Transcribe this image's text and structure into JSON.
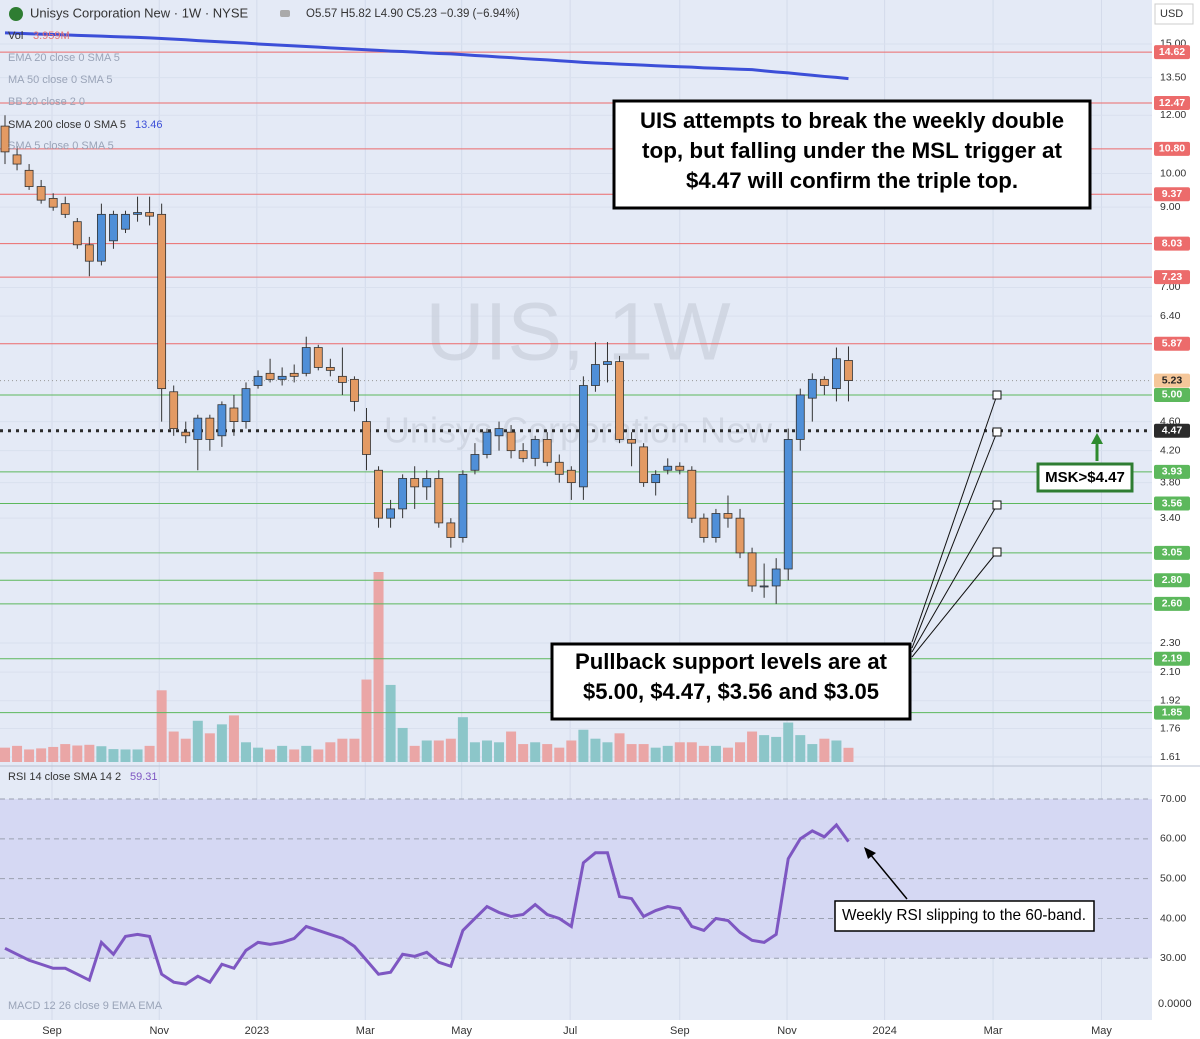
{
  "header": {
    "symbol": "Unisys Corporation New · 1W · NYSE",
    "ohlc": "O5.57 H5.82 L4.90 C5.23 −0.39 (−6.94%)",
    "currency": "USD"
  },
  "indicators": [
    {
      "name": "Vol",
      "value": "3.959M"
    },
    {
      "name": "EMA 20 close 0 SMA 5"
    },
    {
      "name": "MA 50 close 0 SMA 5"
    },
    {
      "name": "BB 20 close 2 0"
    },
    {
      "name": "SMA 200 close 0 SMA 5",
      "value": "13.46"
    },
    {
      "name": "SMA 5 close 0 SMA 5"
    }
  ],
  "watermark": {
    "title": "UIS, 1W",
    "subtitle": "Unisys Corporation New"
  },
  "annotations": {
    "top": [
      "UIS attempts to break the weekly double",
      "top, but falling under the MSL trigger at",
      "$4.47 will confirm the triple top."
    ],
    "support": [
      "Pullback support levels are at",
      "$5.00, $4.47, $3.56 and $3.05"
    ],
    "msk": "MSK>$4.47",
    "rsi": "Weekly RSI slipping to the 60-band."
  },
  "macd": {
    "title": "MACD 12 26 close 9 EMA EMA",
    "zero_label": "0.0000"
  },
  "chart_data": [
    {
      "type": "candlestick",
      "log": true,
      "ylim": [
        1.585,
        15.67
      ],
      "yticks": [
        {
          "value": 15,
          "label": "15.00"
        },
        {
          "value": 13.5,
          "label": "13.50"
        },
        {
          "value": 12,
          "label": "12.00"
        },
        {
          "value": 10,
          "label": "10.00"
        },
        {
          "value": 9,
          "label": "9.00"
        },
        {
          "value": 7,
          "label": "7.00"
        },
        {
          "value": 6.4,
          "label": "6.40"
        },
        {
          "value": 4.6,
          "label": "4.60"
        },
        {
          "value": 4.2,
          "label": "4.20"
        },
        {
          "value": 3.8,
          "label": "3.80"
        },
        {
          "value": 3.4,
          "label": "3.40"
        },
        {
          "value": 2.3,
          "label": "2.30"
        },
        {
          "value": 2.1,
          "label": "2.10"
        },
        {
          "value": 1.92,
          "label": "1.92"
        },
        {
          "value": 1.76,
          "label": "1.76"
        },
        {
          "value": 1.61,
          "label": "1.61"
        }
      ],
      "xlim": [
        -0.415,
        95.19
      ],
      "xticks": [
        {
          "value": 3.9,
          "label": "Sep"
        },
        {
          "value": 12.8,
          "label": "Nov"
        },
        {
          "value": 20.9,
          "label": "2023"
        },
        {
          "value": 29.9,
          "label": "Mar"
        },
        {
          "value": 37.9,
          "label": "May"
        },
        {
          "value": 46.9,
          "label": "Jul"
        },
        {
          "value": 56,
          "label": "Sep"
        },
        {
          "value": 64.9,
          "label": "Nov"
        },
        {
          "value": 73,
          "label": "2024"
        },
        {
          "value": 82,
          "label": "Mar"
        },
        {
          "value": 91,
          "label": "May"
        }
      ],
      "open": [
        11.6,
        10.6,
        10.1,
        9.6,
        9.25,
        9.1,
        8.6,
        8.0,
        7.6,
        8.1,
        8.4,
        8.8,
        8.85,
        8.8,
        5.05,
        4.45,
        4.35,
        4.65,
        4.4,
        4.8,
        4.6,
        5.15,
        5.35,
        5.25,
        5.35,
        5.35,
        5.8,
        5.45,
        5.3,
        5.25,
        4.6,
        3.95,
        3.4,
        3.5,
        3.85,
        3.75,
        3.85,
        3.35,
        3.2,
        3.95,
        4.15,
        4.4,
        4.45,
        4.2,
        4.1,
        4.35,
        4.05,
        3.95,
        3.75,
        5.15,
        5.5,
        5.55,
        4.35,
        4.25,
        3.8,
        3.95,
        4.0,
        3.95,
        3.4,
        3.2,
        3.45,
        3.4,
        3.05,
        2.75,
        2.75,
        2.9,
        4.35,
        4.95,
        5.25,
        5.1,
        5.57
      ],
      "high": [
        12.0,
        10.9,
        10.3,
        9.8,
        9.4,
        9.3,
        8.7,
        8.2,
        9.1,
        8.9,
        8.9,
        9.3,
        9.3,
        9.1,
        5.15,
        4.6,
        4.7,
        4.7,
        4.9,
        5.0,
        5.2,
        5.4,
        5.6,
        5.45,
        5.5,
        6.0,
        5.85,
        5.6,
        5.8,
        5.3,
        4.8,
        4.0,
        3.6,
        3.9,
        4.0,
        3.95,
        3.95,
        3.4,
        3.95,
        4.3,
        4.5,
        4.6,
        4.55,
        4.3,
        4.4,
        4.45,
        4.15,
        4.0,
        5.3,
        5.9,
        5.9,
        5.65,
        4.45,
        4.3,
        3.95,
        4.1,
        4.05,
        4.0,
        3.45,
        3.5,
        3.65,
        3.5,
        3.1,
        2.95,
        3.0,
        4.5,
        5.1,
        5.35,
        5.3,
        5.8,
        5.82
      ],
      "low": [
        10.3,
        10.1,
        9.5,
        9.1,
        8.9,
        8.7,
        7.9,
        7.25,
        7.5,
        7.9,
        8.3,
        8.6,
        8.5,
        4.6,
        4.4,
        4.3,
        3.95,
        4.2,
        4.25,
        4.4,
        4.5,
        5.1,
        5.2,
        5.15,
        5.2,
        5.3,
        5.4,
        5.3,
        5.0,
        4.75,
        3.95,
        3.3,
        3.3,
        3.4,
        3.5,
        3.6,
        3.3,
        3.1,
        3.15,
        3.9,
        4.1,
        4.2,
        4.1,
        4.05,
        4.0,
        4.0,
        3.8,
        3.6,
        3.6,
        5.05,
        5.2,
        4.3,
        4.0,
        3.75,
        3.65,
        3.9,
        3.9,
        3.35,
        3.15,
        3.15,
        3.3,
        3.0,
        2.7,
        2.65,
        2.6,
        2.8,
        4.2,
        4.6,
        5.0,
        4.9,
        4.9
      ],
      "close": [
        10.7,
        10.3,
        9.6,
        9.2,
        9.0,
        8.8,
        8.0,
        7.6,
        8.8,
        8.8,
        8.8,
        8.85,
        8.75,
        5.1,
        4.5,
        4.4,
        4.65,
        4.35,
        4.85,
        4.6,
        5.1,
        5.3,
        5.25,
        5.3,
        5.3,
        5.8,
        5.45,
        5.4,
        5.2,
        4.9,
        4.15,
        3.4,
        3.5,
        3.85,
        3.75,
        3.85,
        3.35,
        3.2,
        3.9,
        4.15,
        4.45,
        4.5,
        4.2,
        4.1,
        4.35,
        4.05,
        3.9,
        3.8,
        5.15,
        5.5,
        5.55,
        4.35,
        4.3,
        3.8,
        3.9,
        4.0,
        3.95,
        3.4,
        3.2,
        3.45,
        3.4,
        3.05,
        2.75,
        2.75,
        2.9,
        4.35,
        5.0,
        5.25,
        5.15,
        5.6,
        5.23
      ],
      "volume": [
        4,
        4.5,
        3.5,
        3.8,
        4.2,
        5,
        4.6,
        4.8,
        4.4,
        3.6,
        3.5,
        3.5,
        4.5,
        20,
        8.5,
        6.5,
        11.5,
        8,
        10.5,
        13,
        5.5,
        4,
        3.5,
        4.5,
        3.5,
        4.5,
        3.5,
        5.5,
        6.5,
        6.5,
        23,
        53,
        21.5,
        9.5,
        4.5,
        6,
        6,
        6.5,
        12.5,
        5.5,
        6,
        5.5,
        8.5,
        5,
        5.5,
        5,
        4,
        6,
        9,
        6.5,
        5.5,
        8,
        5,
        5,
        4,
        4.5,
        5.5,
        5.5,
        4.5,
        4.5,
        4,
        5.5,
        8.5,
        7.5,
        7,
        11,
        7.5,
        5,
        6.5,
        6,
        3.959
      ],
      "up_color": "#4f8fd8",
      "down_color": "#e39a63",
      "volume_up_color": "#8cc6c9",
      "volume_down_color": "#eaa6a6",
      "sma": {
        "color": "#3c4fd8",
        "values": [
          15.53,
          15.51,
          15.49,
          15.47,
          15.45,
          15.43,
          15.41,
          15.39,
          15.37,
          15.35,
          15.33,
          15.31,
          15.29,
          15.26,
          15.23,
          15.2,
          15.16,
          15.13,
          15.1,
          15.07,
          15.04,
          15.0,
          14.97,
          14.94,
          14.91,
          14.88,
          14.85,
          14.82,
          14.79,
          14.76,
          14.73,
          14.7,
          14.67,
          14.65,
          14.62,
          14.59,
          14.56,
          14.54,
          14.51,
          14.47,
          14.44,
          14.4,
          14.37,
          14.33,
          14.3,
          14.27,
          14.23,
          14.2,
          14.16,
          14.13,
          14.11,
          14.08,
          14.06,
          14.04,
          14.01,
          13.99,
          13.97,
          13.95,
          13.92,
          13.9,
          13.88,
          13.86,
          13.84,
          13.79,
          13.74,
          13.7,
          13.65,
          13.6,
          13.55,
          13.51,
          13.46
        ]
      },
      "levels": [
        {
          "value": 14.62,
          "color": "#ec6b6b"
        },
        {
          "value": 12.47,
          "color": "#ec6b6b"
        },
        {
          "value": 10.8,
          "label": "10.80",
          "color": "#ec6b6b"
        },
        {
          "value": 9.37,
          "color": "#ec6b6b"
        },
        {
          "value": 8.03,
          "color": "#ec6b6b"
        },
        {
          "value": 7.23,
          "color": "#ec6b6b"
        },
        {
          "value": 5.87,
          "color": "#ec6b6b"
        },
        {
          "value": 5.23,
          "color": "#f5c79a",
          "text_color": "#222222",
          "style": "dashed"
        },
        {
          "value": 5,
          "label": "5.00",
          "color": "#5cb85c"
        },
        {
          "value": 4.47,
          "color": "#2b2b2b",
          "style": "dotted"
        },
        {
          "value": 3.93,
          "color": "#5cb85c"
        },
        {
          "value": 3.56,
          "color": "#5cb85c"
        },
        {
          "value": 3.05,
          "color": "#5cb85c"
        },
        {
          "value": 2.8,
          "label": "2.80",
          "color": "#5cb85c"
        },
        {
          "value": 2.6,
          "label": "2.60",
          "color": "#5cb85c"
        },
        {
          "value": 2.19,
          "color": "#5cb85c"
        },
        {
          "value": 1.85,
          "color": "#5cb85c"
        }
      ]
    },
    {
      "type": "line",
      "title": "RSI 14 close SMA 14 2",
      "value_text": "59.31",
      "color": "#7e57c2",
      "ylim": [
        15,
        77.3
      ],
      "band": [
        30,
        70
      ],
      "band_color": "#d5d8f3",
      "yticks": [
        {
          "value": 70,
          "label": "70.00"
        },
        {
          "value": 60,
          "label": "60.00"
        },
        {
          "value": 50,
          "label": "50.00"
        },
        {
          "value": 40,
          "label": "40.00"
        },
        {
          "value": 30,
          "label": "30.00"
        }
      ],
      "values": [
        32.5,
        31,
        29.5,
        28.5,
        27.5,
        27.5,
        26,
        24.5,
        34,
        31,
        35.5,
        36,
        35.5,
        26,
        24,
        23.5,
        25.5,
        24,
        28.5,
        27.5,
        32,
        34,
        33.5,
        34,
        35,
        38,
        37,
        36,
        35,
        33,
        29.5,
        26,
        26.5,
        31,
        30.5,
        31.5,
        29,
        28,
        37,
        40,
        43,
        41.5,
        40.5,
        41,
        43.5,
        41,
        40,
        38,
        54,
        56.5,
        56.5,
        45.5,
        45,
        40.5,
        42,
        43,
        42.5,
        38,
        37,
        40,
        39.5,
        36.5,
        34.5,
        34,
        36,
        55,
        60,
        62,
        60.5,
        63.5,
        59.31
      ]
    }
  ]
}
